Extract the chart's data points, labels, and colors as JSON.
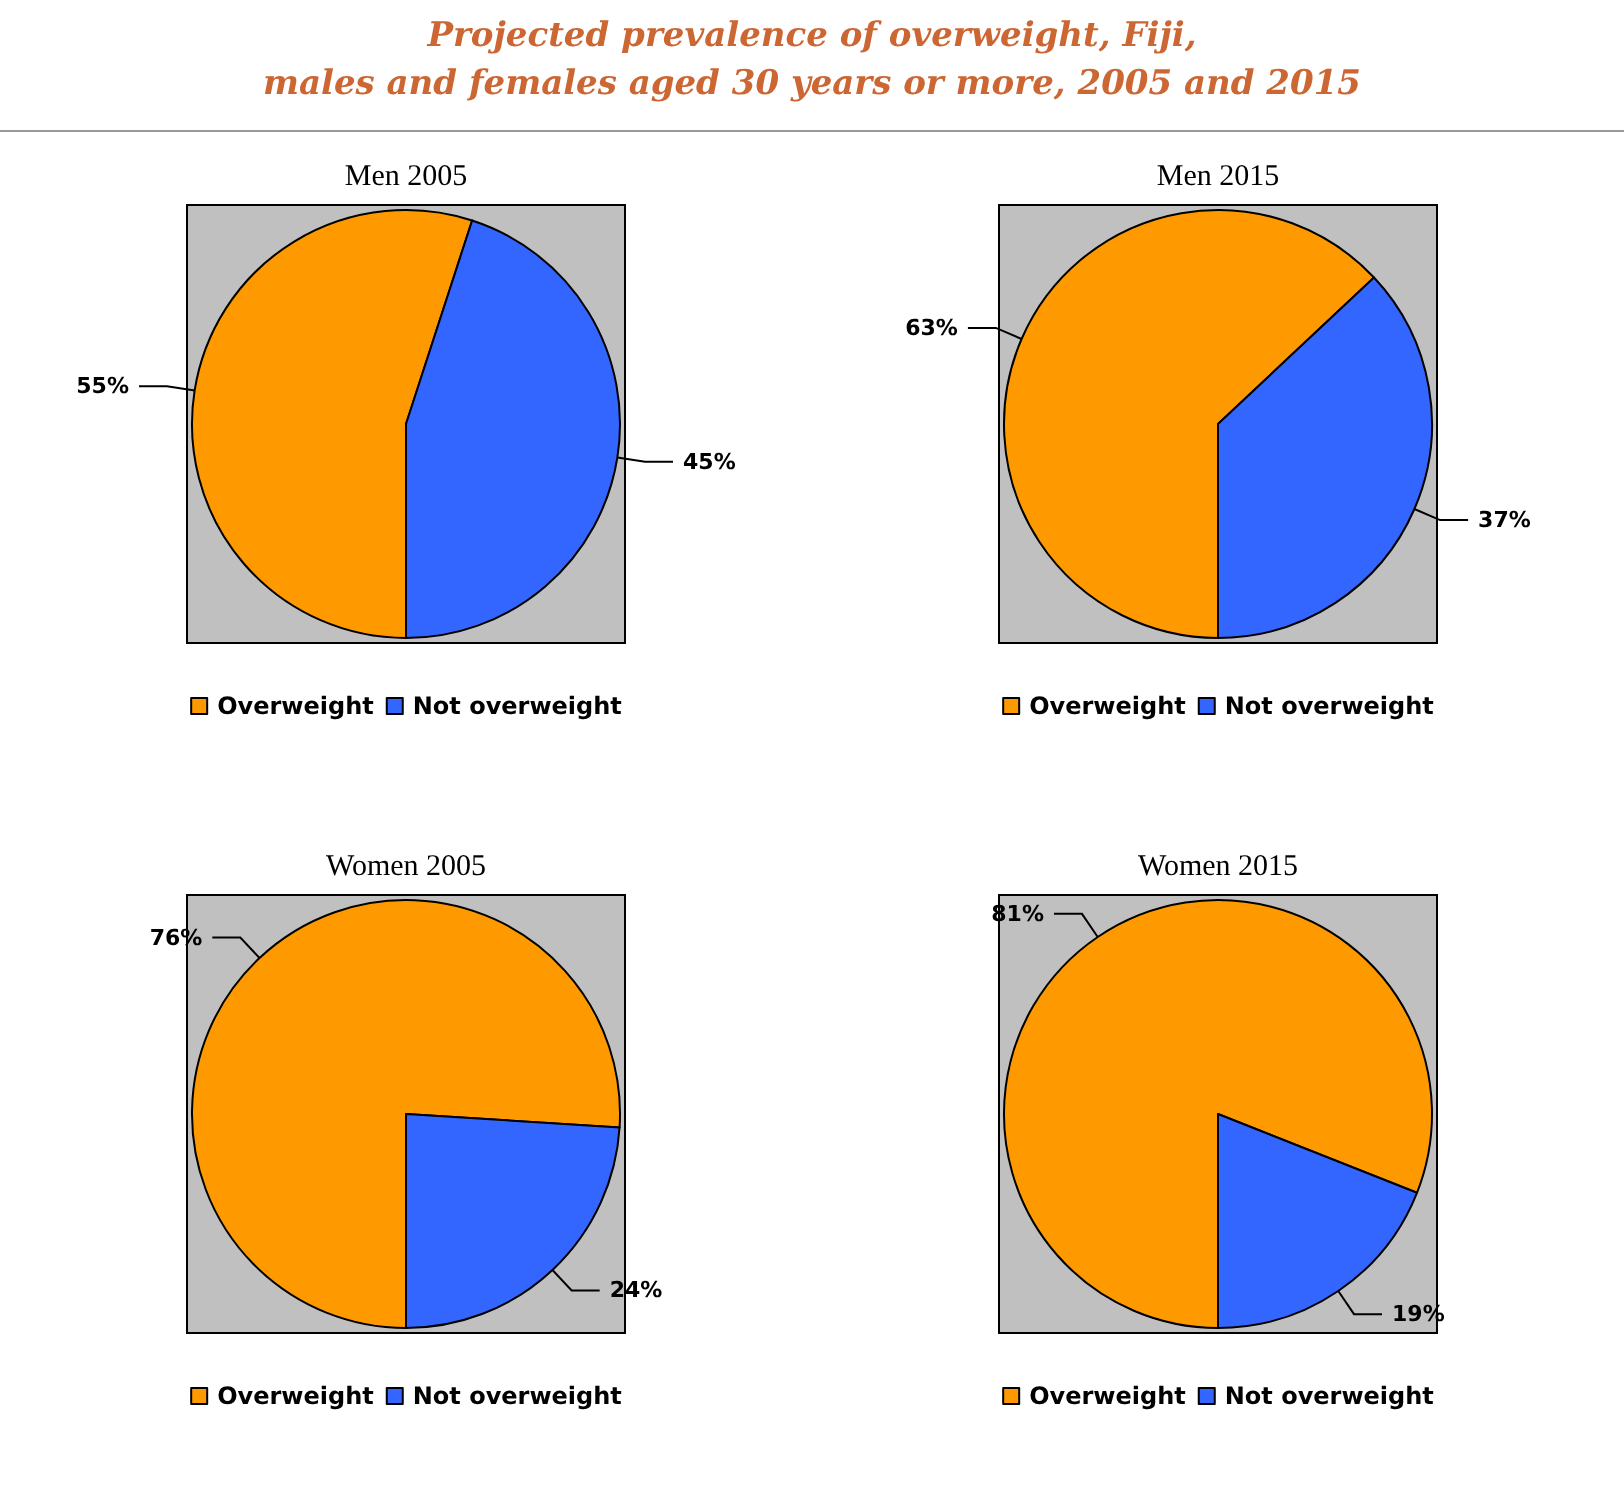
{
  "chart_data": [
    {
      "type": "other",
      "title": "Projected prevalence of overweight, Fiji,\nmales and females aged 30 years or more, 2005 and 2015"
    },
    {
      "type": "pie",
      "title": "Men 2005",
      "categories": [
        "Overweight",
        "Not overweight"
      ],
      "values": [
        55,
        45
      ],
      "colors": [
        "#ff9900",
        "#3366ff"
      ],
      "value_labels": [
        "55%",
        "45%"
      ],
      "legend": "bottom"
    },
    {
      "type": "pie",
      "title": "Men 2015",
      "categories": [
        "Overweight",
        "Not overweight"
      ],
      "values": [
        63,
        37
      ],
      "colors": [
        "#ff9900",
        "#3366ff"
      ],
      "value_labels": [
        "63%",
        "37%"
      ],
      "legend": "bottom"
    },
    {
      "type": "pie",
      "title": "Women 2005",
      "categories": [
        "Overweight",
        "Not overweight"
      ],
      "values": [
        76,
        24
      ],
      "colors": [
        "#ff9900",
        "#3366ff"
      ],
      "value_labels": [
        "76%",
        "24%"
      ],
      "legend": "bottom"
    },
    {
      "type": "pie",
      "title": "Women 2015",
      "categories": [
        "Overweight",
        "Not overweight"
      ],
      "values": [
        81,
        19
      ],
      "colors": [
        "#ff9900",
        "#3366ff"
      ],
      "value_labels": [
        "81%",
        "19%"
      ],
      "legend": "bottom"
    }
  ]
}
